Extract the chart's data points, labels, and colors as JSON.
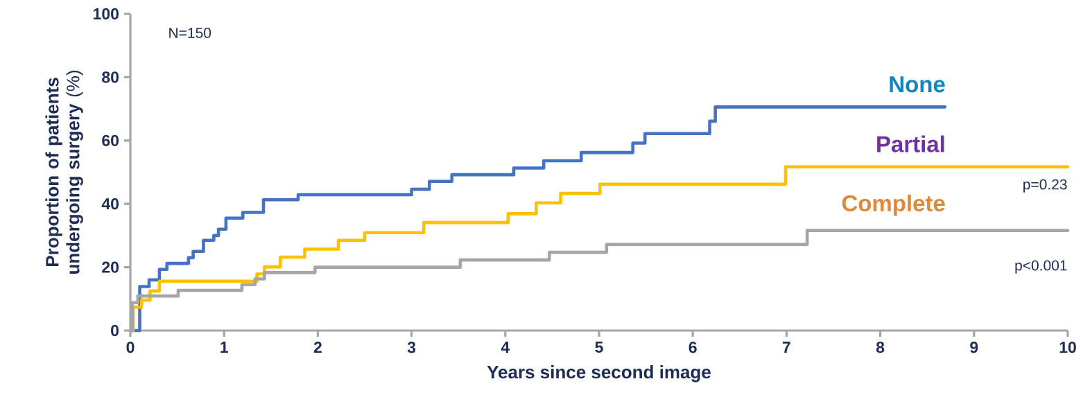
{
  "chart_data": {
    "type": "step",
    "xlabel": "Years since second image",
    "ylabel": "**Proportion of patients undergoing surgery** (%)",
    "xlim": [
      0,
      10
    ],
    "ylim": [
      0,
      100
    ],
    "xticks": [
      0,
      1,
      2,
      3,
      4,
      5,
      6,
      7,
      8,
      9,
      10
    ],
    "yticks": [
      0,
      20,
      40,
      60,
      80,
      100
    ],
    "grid": false,
    "legend": false,
    "series": [
      {
        "name": "None",
        "color": "#4472c4",
        "x": [
          0,
          0.1,
          0.2,
          0.31,
          0.39,
          0.62,
          0.67,
          0.78,
          0.89,
          0.94,
          1.02,
          1.2,
          1.42,
          1.79,
          3.0,
          3.19,
          3.43,
          4.09,
          4.41,
          4.81,
          5.36,
          5.49,
          6.18,
          6.24,
          8.69
        ],
        "values": [
          0,
          13.9,
          16,
          19.3,
          21.2,
          23,
          25,
          28.5,
          30,
          32,
          35.5,
          37.3,
          41.3,
          42.9,
          44.6,
          47.1,
          49.2,
          51.3,
          53.6,
          56.2,
          59.2,
          62.2,
          66.1,
          70.6,
          70.6
        ]
      },
      {
        "name": "Partial",
        "color": "#ffc000",
        "x": [
          0,
          0.03,
          0.12,
          0.21,
          0.31,
          1.35,
          1.43,
          1.6,
          1.86,
          2.22,
          2.5,
          3.13,
          4.03,
          4.33,
          4.59,
          5.01,
          6.99,
          10
        ],
        "values": [
          0,
          7.4,
          9.6,
          12.5,
          15.6,
          17.9,
          20.1,
          23.2,
          25.7,
          28.5,
          30.9,
          34.1,
          36.9,
          40.3,
          43.3,
          46.2,
          51.7,
          51.7
        ]
      },
      {
        "name": "Complete",
        "color": "#a5a5a5",
        "x": [
          0,
          0.02,
          0.08,
          0.51,
          1.19,
          1.33,
          1.43,
          1.97,
          3.52,
          4.47,
          5.08,
          7.22,
          10
        ],
        "values": [
          0,
          8.8,
          10.9,
          12.7,
          14.5,
          16.3,
          18.3,
          20,
          22.3,
          24.7,
          27.2,
          31.6,
          31.6
        ]
      }
    ],
    "annotations": [
      "N=150",
      "p=0.23",
      "p<0.001"
    ]
  }
}
